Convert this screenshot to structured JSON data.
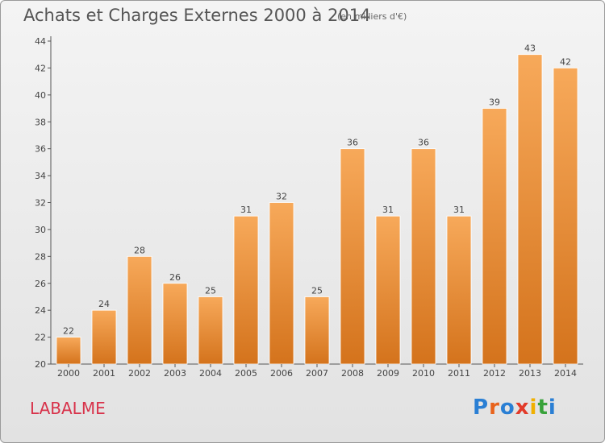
{
  "page": {
    "title": "Achats et Charges Externes 2000 à 2014",
    "subtitle": "(en milliers d'€)",
    "commune": "LABALME",
    "logo_letters": [
      "P",
      "r",
      "o",
      "x",
      "i",
      "t",
      "i"
    ]
  },
  "colors": {
    "bar_top": "#f7a95a",
    "bar_bottom": "#d4731c",
    "axis": "#555555",
    "commune": "#d8324a"
  },
  "chart_data": {
    "type": "bar",
    "title": "Achats et Charges Externes 2000 à 2014",
    "subtitle": "(en milliers d'€)",
    "xlabel": "",
    "ylabel": "",
    "categories": [
      "2000",
      "2001",
      "2002",
      "2003",
      "2004",
      "2005",
      "2006",
      "2007",
      "2008",
      "2009",
      "2010",
      "2011",
      "2012",
      "2013",
      "2014"
    ],
    "values": [
      22,
      24,
      28,
      26,
      25,
      31,
      32,
      25,
      36,
      31,
      36,
      31,
      39,
      43,
      42
    ],
    "ylim": [
      20,
      44
    ],
    "yticks": [
      20,
      22,
      24,
      26,
      28,
      30,
      32,
      34,
      36,
      38,
      40,
      42,
      44
    ],
    "grid": false,
    "legend": "none"
  }
}
